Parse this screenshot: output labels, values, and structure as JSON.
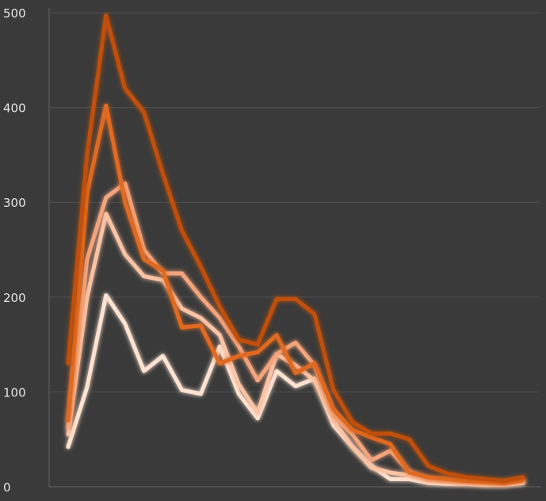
{
  "chart_data": {
    "type": "line",
    "x": [
      0,
      1,
      2,
      3,
      4,
      5,
      6,
      7,
      8,
      9,
      10,
      11,
      12,
      13,
      14,
      15,
      16,
      17,
      18,
      19,
      20,
      21,
      22,
      23,
      24
    ],
    "ylim": [
      0,
      500
    ],
    "yticks": [
      0,
      100,
      200,
      300,
      400,
      500
    ],
    "grid": true,
    "series": [
      {
        "color": "#fde2d2",
        "values": [
          42,
          105,
          202,
          172,
          122,
          138,
          102,
          98,
          148,
          98,
          72,
          122,
          106,
          114,
          65,
          42,
          22,
          8,
          8,
          4,
          3,
          3,
          2,
          2,
          4
        ]
      },
      {
        "color": "#f9c3a5",
        "values": [
          55,
          200,
          288,
          245,
          222,
          218,
          188,
          178,
          160,
          108,
          78,
          140,
          128,
          112,
          70,
          42,
          20,
          15,
          12,
          6,
          5,
          4,
          3,
          3,
          5
        ]
      },
      {
        "color": "#f3a47c",
        "values": [
          62,
          240,
          305,
          320,
          250,
          225,
          225,
          200,
          178,
          148,
          112,
          140,
          152,
          128,
          75,
          55,
          28,
          38,
          16,
          8,
          6,
          5,
          4,
          3,
          6
        ]
      },
      {
        "color": "#e06a20",
        "values": [
          70,
          310,
          402,
          300,
          240,
          228,
          168,
          170,
          130,
          138,
          142,
          160,
          120,
          130,
          82,
          60,
          52,
          45,
          15,
          10,
          8,
          6,
          5,
          4,
          7
        ]
      },
      {
        "color": "#c04f0e",
        "values": [
          130,
          350,
          497,
          420,
          395,
          330,
          270,
          232,
          190,
          155,
          150,
          198,
          198,
          182,
          102,
          68,
          56,
          56,
          50,
          22,
          14,
          10,
          8,
          6,
          10
        ]
      }
    ]
  }
}
